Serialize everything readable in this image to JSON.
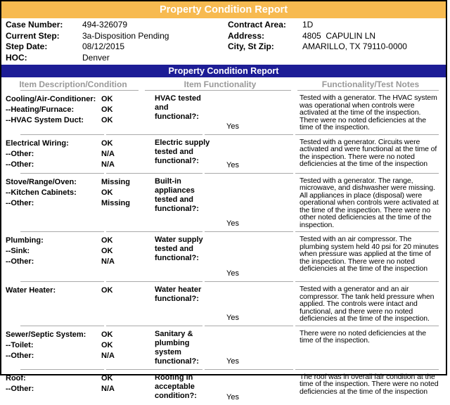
{
  "title_banner": "Property Condition Report",
  "section_banner": "Property Condition Report",
  "colors": {
    "banner_orange": "#F7BA50",
    "banner_blue": "#1D1D96",
    "header_gray": "#999999"
  },
  "case_info": {
    "left": [
      {
        "label": "Case Number:",
        "value": "494-326079"
      },
      {
        "label": "Current Step:",
        "value": "3a-Disposition Pending"
      },
      {
        "label": "Step Date:",
        "value": "08/12/2015"
      },
      {
        "label": "HOC:",
        "value": "Denver"
      }
    ],
    "right": [
      {
        "label": "Contract Area:",
        "value": "1D"
      },
      {
        "label": "Address:",
        "value": "4805  CAPULIN LN"
      },
      {
        "label": "City, St Zip:",
        "value": "AMARILLO, TX 79110-0000"
      }
    ]
  },
  "table": {
    "headers": [
      "Item Description/Condition",
      "Item Functionality",
      "Functionality/Test Notes"
    ],
    "rows": [
      {
        "items": [
          {
            "label": "Cooling/Air-Conditioner:",
            "value": "OK"
          },
          {
            "label": "--Heating/Furnace:",
            "value": "OK"
          },
          {
            "label": "--HVAC System Duct:",
            "value": "OK"
          }
        ],
        "question": "HVAC tested and\nfunctional?:",
        "answer": "Yes",
        "notes": "Tested with a generator. The HVAC system was operational when controls were activated at the time of the inspection. There were no noted deficiencies at the time of the inspection."
      },
      {
        "items": [
          {
            "label": "Electrical Wiring:",
            "value": "OK"
          },
          {
            "label": "--Other:",
            "value": "N/A"
          },
          {
            "label": "--Other:",
            "value": "N/A"
          }
        ],
        "question": "Electric supply\ntested and\nfunctional?:",
        "answer": "Yes",
        "notes": "Tested with a generator. Circuits were activated and were functional at the time of the inspection. There were no noted deficiencies at the time of the inspection"
      },
      {
        "items": [
          {
            "label": "Stove/Range/Oven:",
            "value": "Missing"
          },
          {
            "label": "--Kitchen Cabinets:",
            "value": "OK"
          },
          {
            "label": "--Other:",
            "value": "Missing"
          }
        ],
        "question": "Built-in appliances\ntested and\nfunctional?:",
        "answer": "Yes",
        "notes": "Tested with a generator. The range, microwave, and dishwasher were missing. All appliances in place (disposal) were operational when controls were activated at the time of the inspection. There were no other noted deficiencies at the time of the inspection."
      },
      {
        "items": [
          {
            "label": "Plumbing:",
            "value": "OK"
          },
          {
            "label": "--Sink:",
            "value": "OK"
          },
          {
            "label": "--Other:",
            "value": "N/A"
          }
        ],
        "question": "Water supply\ntested and\nfunctional?:",
        "answer": "Yes",
        "notes": "Tested with an air compressor. The plumbing system held 40 psi for 20 minutes when pressure was applied at the time of the inspection. There were no noted deficiencies at the time of the inspection"
      },
      {
        "items": [
          {
            "label": "Water Heater:",
            "value": "OK"
          }
        ],
        "question": "Water heater\nfunctional?:",
        "answer": "Yes",
        "notes": "Tested with a generator and an air compressor. The tank held pressure when applied. The controls were intact and functional, and there were no noted deficiencies at the time of the inspection."
      },
      {
        "items": [
          {
            "label": "Sewer/Septic System:",
            "value": "OK"
          },
          {
            "label": "--Toilet:",
            "value": "OK"
          },
          {
            "label": "--Other:",
            "value": "N/A"
          }
        ],
        "question": "Sanitary &\nplumbing system\nfunctional?:",
        "answer": "Yes",
        "notes": "There were no noted deficiencies at the time of the inspection."
      },
      {
        "items": [
          {
            "label": "Roof:",
            "value": "OK"
          },
          {
            "label": "--Other:",
            "value": "N/A"
          }
        ],
        "question": "Roofing in\nacceptable\ncondition?:",
        "answer": "Yes",
        "notes": "The roof was in overall fair condition at the time of the inspection. There were no noted deficiencies at the time of the inspection"
      }
    ]
  }
}
